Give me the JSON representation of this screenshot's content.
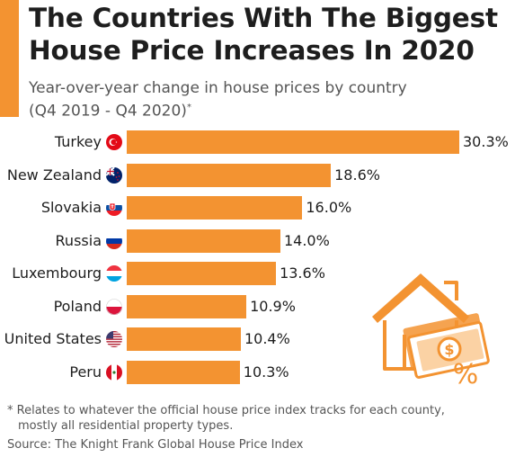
{
  "header": {
    "title_line1": "The Countries With The Biggest",
    "title_line2": "House Price Increases In 2020",
    "subtitle_line1": "Year-over-year change in house prices by country",
    "subtitle_line2": "(Q4 2019 - Q4 2020)",
    "subtitle_mark": "*"
  },
  "footer": {
    "footnote_line1": "* Relates to whatever the official house price index tracks for each county,",
    "footnote_line2": "mostly all residential property types.",
    "source": "Source: The Knight Frank Global House Price Index"
  },
  "colors": {
    "bar": "#f39331",
    "accent": "#f39331",
    "text": "#1e1e1e",
    "muted": "#555555"
  },
  "chart_data": {
    "type": "bar",
    "orientation": "horizontal",
    "categories": [
      "Turkey",
      "New Zealand",
      "Slovakia",
      "Russia",
      "Luxembourg",
      "Poland",
      "United States",
      "Peru"
    ],
    "values": [
      30.3,
      18.6,
      16.0,
      14.0,
      13.6,
      10.9,
      10.4,
      10.3
    ],
    "value_labels": [
      "30.3%",
      "18.6%",
      "16.0%",
      "14.0%",
      "13.6%",
      "10.9%",
      "10.4%",
      "10.3%"
    ],
    "flags": [
      "turkey-flag-icon",
      "new-zealand-flag-icon",
      "slovakia-flag-icon",
      "russia-flag-icon",
      "luxembourg-flag-icon",
      "poland-flag-icon",
      "united-states-flag-icon",
      "peru-flag-icon"
    ],
    "grid": false,
    "legend": "none"
  }
}
